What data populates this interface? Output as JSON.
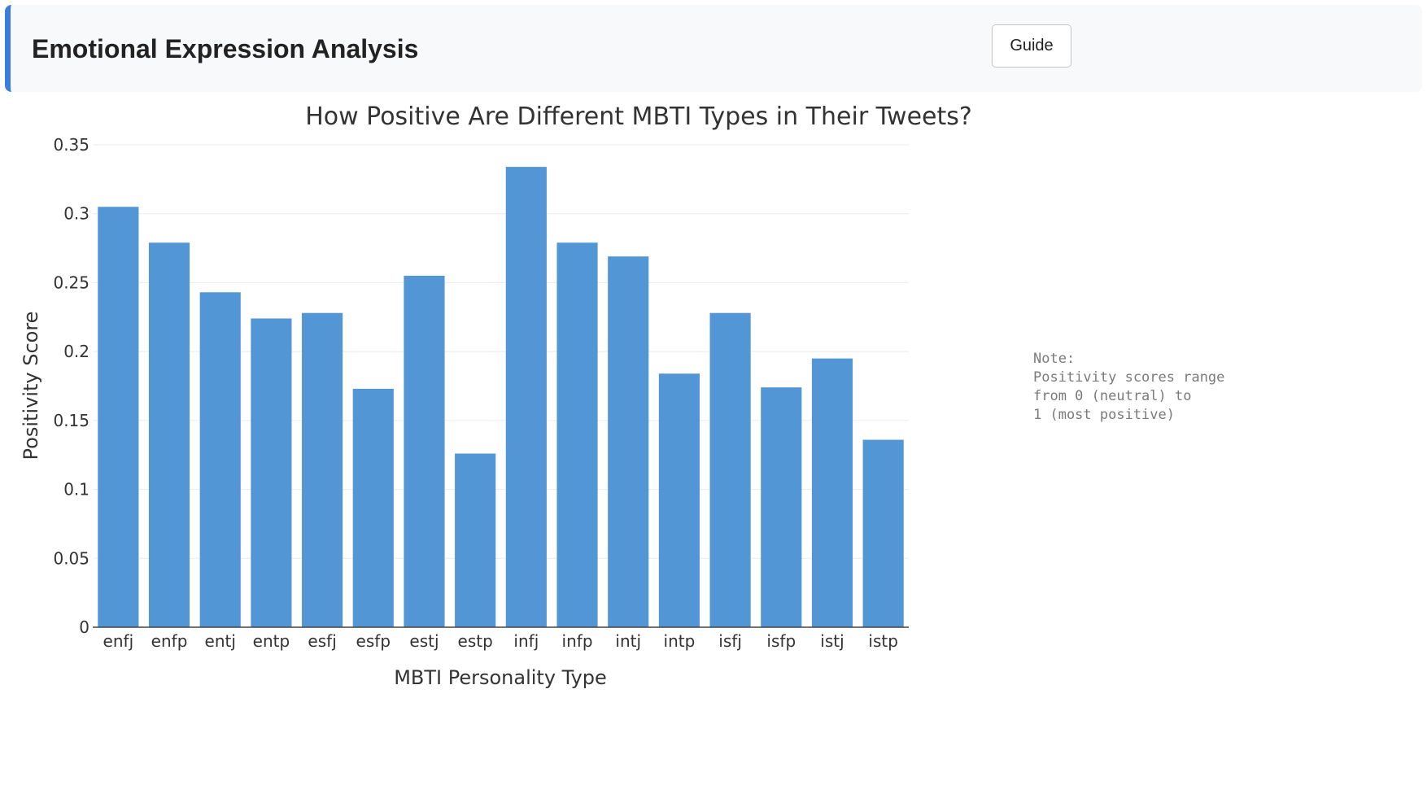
{
  "header": {
    "title": "Emotional Expression Analysis",
    "guide_label": "Guide"
  },
  "note": {
    "lines": [
      "Note:",
      "Positivity scores range",
      "from 0 (neutral) to",
      "1 (most positive)"
    ]
  },
  "chart_data": {
    "type": "bar",
    "title": "How Positive Are Different MBTI Types in Their Tweets?",
    "xlabel": "MBTI Personality Type",
    "ylabel": "Positivity Score",
    "categories": [
      "enfj",
      "enfp",
      "entj",
      "entp",
      "esfj",
      "esfp",
      "estj",
      "estp",
      "infj",
      "infp",
      "intj",
      "intp",
      "isfj",
      "isfp",
      "istj",
      "istp"
    ],
    "values": [
      0.305,
      0.279,
      0.243,
      0.224,
      0.228,
      0.173,
      0.255,
      0.126,
      0.334,
      0.279,
      0.269,
      0.184,
      0.228,
      0.174,
      0.195,
      0.136
    ],
    "ylim": [
      0,
      0.35
    ],
    "yticks": [
      0,
      0.05,
      0.1,
      0.15,
      0.2,
      0.25,
      0.3,
      0.35
    ],
    "ytick_labels": [
      "0",
      "0.05",
      "0.1",
      "0.15",
      "0.2",
      "0.25",
      "0.3",
      "0.35"
    ],
    "grid": true,
    "bar_color": "#5296d5"
  }
}
